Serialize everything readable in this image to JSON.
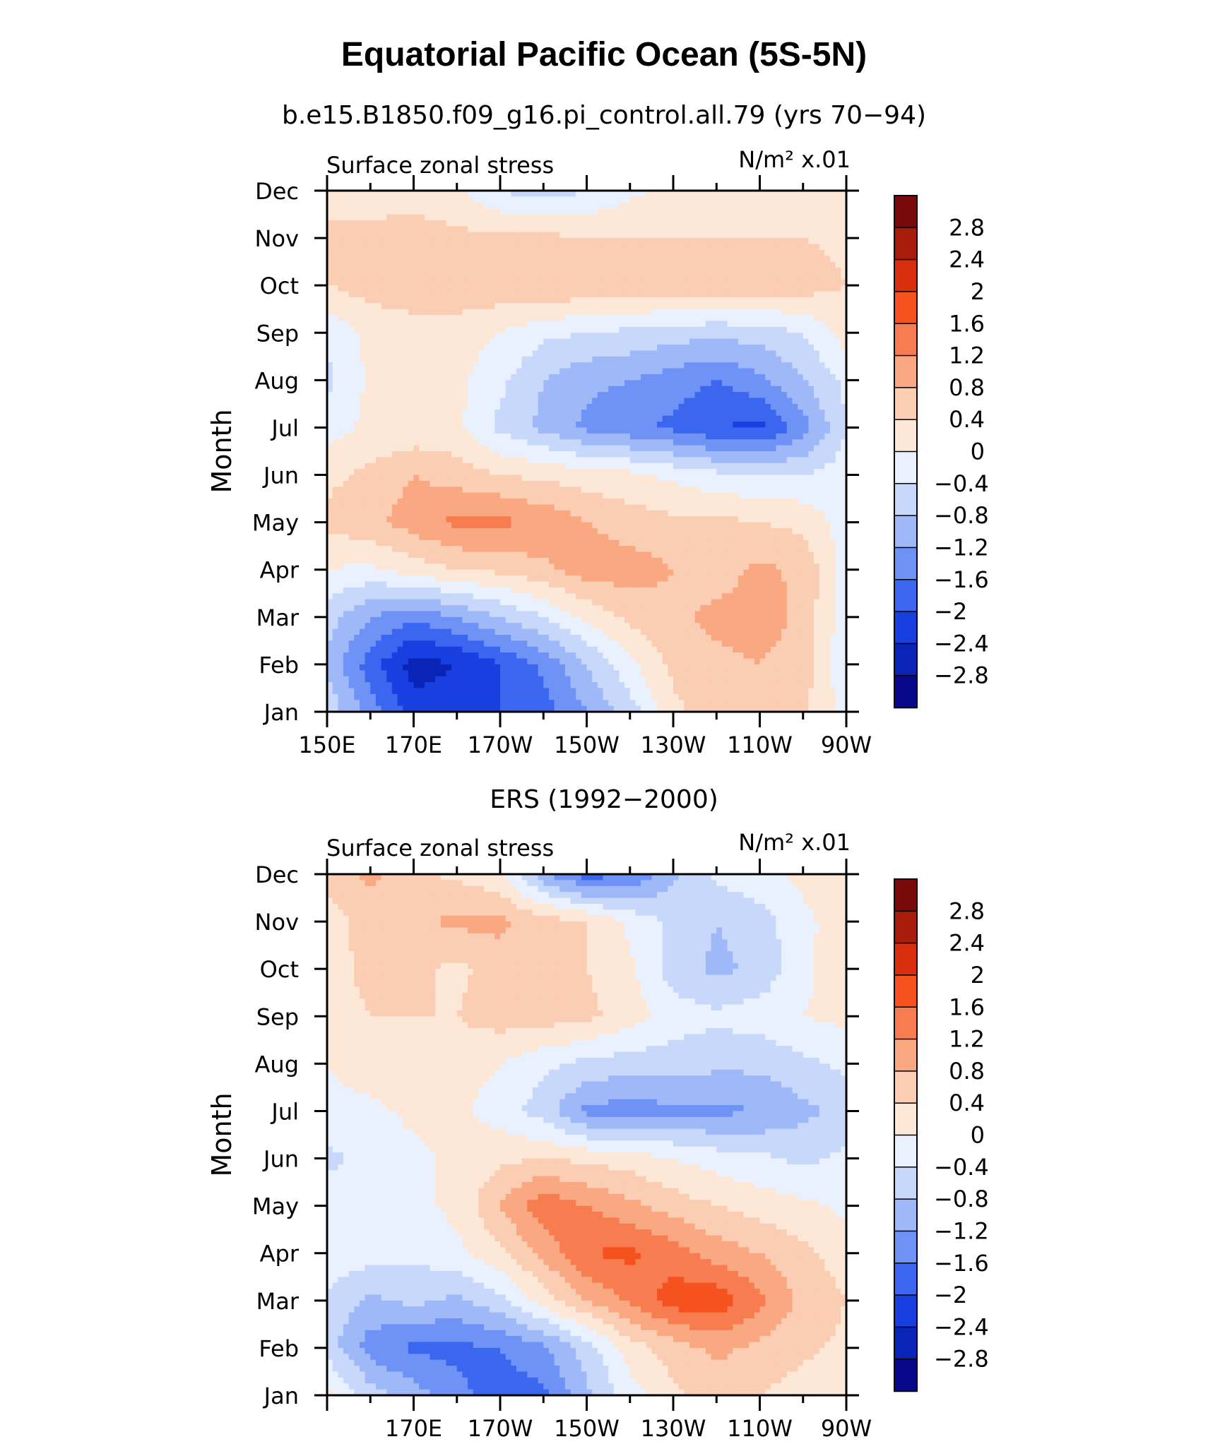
{
  "figure": {
    "title": "Equatorial Pacific Ocean (5S-5N)"
  },
  "panels": [
    {
      "subtitle": "b.e15.B1850.f09_g16.pi_control.all.79 (yrs 70−94)",
      "left_label": "Surface zonal stress",
      "units_label": "N/m² x.01"
    },
    {
      "subtitle": "ERS (1992−2000)",
      "left_label": "Surface zonal stress",
      "units_label": "N/m² x.01"
    }
  ],
  "chart_data": [
    {
      "type": "heatmap",
      "title": "b.e15.B1850.f09_g16.pi_control.all.79 (yrs 70−94)",
      "variable": "Surface zonal stress",
      "units": "N/m² x.01",
      "xlabel": "",
      "ylabel": "Month",
      "x_ticks": [
        "150E",
        "170E",
        "170W",
        "150W",
        "130W",
        "110W",
        "90W"
      ],
      "x_range_deg_east": [
        150,
        270
      ],
      "y_ticks": [
        "Jan",
        "Feb",
        "Mar",
        "Apr",
        "May",
        "Jun",
        "Jul",
        "Aug",
        "Sep",
        "Oct",
        "Nov",
        "Dec"
      ],
      "x_grid": [
        150,
        160,
        170,
        180,
        190,
        200,
        210,
        220,
        230,
        240,
        250,
        260,
        270
      ],
      "values": [
        [
          -0.5,
          -1.4,
          -2.2,
          -2.2,
          -2.0,
          -1.8,
          -1.2,
          -0.6,
          0.3,
          0.6,
          0.7,
          0.5,
          -0.2
        ],
        [
          -0.9,
          -1.8,
          -2.6,
          -2.4,
          -2.0,
          -1.5,
          -0.8,
          -0.1,
          0.5,
          0.7,
          0.8,
          0.6,
          -0.3
        ],
        [
          -0.6,
          -1.2,
          -1.5,
          -1.2,
          -0.8,
          -0.4,
          0.1,
          0.5,
          0.7,
          0.9,
          1.0,
          0.7,
          -0.3
        ],
        [
          0.0,
          -0.1,
          0.2,
          0.4,
          0.5,
          0.7,
          1.0,
          1.0,
          0.8,
          0.6,
          0.9,
          0.7,
          -0.2
        ],
        [
          0.5,
          0.7,
          1.0,
          1.3,
          1.3,
          1.1,
          0.8,
          0.6,
          0.5,
          0.5,
          0.4,
          0.3,
          -0.2
        ],
        [
          0.3,
          0.5,
          0.8,
          0.6,
          0.4,
          0.3,
          0.2,
          0.1,
          -0.1,
          -0.3,
          -0.4,
          -0.4,
          -0.2
        ],
        [
          -0.2,
          0.1,
          0.1,
          0.1,
          -0.5,
          -0.9,
          -1.3,
          -1.5,
          -1.7,
          -2.0,
          -2.1,
          -1.4,
          -0.4
        ],
        [
          -0.5,
          0.1,
          0.1,
          0.1,
          -0.3,
          -0.8,
          -1.1,
          -1.2,
          -1.4,
          -1.6,
          -1.3,
          -0.8,
          -0.3
        ],
        [
          -0.3,
          0.1,
          0.2,
          0.2,
          0.0,
          -0.3,
          -0.4,
          -0.5,
          -0.6,
          -0.7,
          -0.6,
          -0.4,
          0.2
        ],
        [
          0.4,
          0.6,
          0.7,
          0.7,
          0.7,
          0.8,
          0.7,
          0.7,
          0.7,
          0.8,
          0.7,
          0.6,
          0.4
        ],
        [
          0.6,
          0.6,
          0.6,
          0.5,
          0.5,
          0.5,
          0.4,
          0.4,
          0.4,
          0.4,
          0.4,
          0.4,
          0.3
        ],
        [
          0.1,
          0.1,
          0.2,
          0.1,
          -0.4,
          -0.6,
          -0.4,
          -0.1,
          0.1,
          0.1,
          0.2,
          0.2,
          0.2
        ]
      ],
      "colorbar_levels": [
        -2.8,
        -2.4,
        -2,
        -1.6,
        -1.2,
        -0.8,
        -0.4,
        0,
        0.4,
        0.8,
        1.2,
        1.6,
        2,
        2.4,
        2.8
      ],
      "colorbar_labels": [
        "2.8",
        "2.4",
        "2",
        "1.6",
        "1.2",
        "0.8",
        "0.4",
        "0",
        "−0.4",
        "−0.8",
        "−1.2",
        "−1.6",
        "−2",
        "−2.4",
        "−2.8"
      ]
    },
    {
      "type": "heatmap",
      "title": "ERS (1992−2000)",
      "variable": "Surface zonal stress",
      "units": "N/m² x.01",
      "xlabel": "",
      "ylabel": "Month",
      "x_ticks": [
        "170E",
        "170W",
        "150W",
        "130W",
        "110W",
        "90W"
      ],
      "x_range_deg_east": [
        150,
        270
      ],
      "y_ticks": [
        "Jan",
        "Feb",
        "Mar",
        "Apr",
        "May",
        "Jun",
        "Jul",
        "Aug",
        "Sep",
        "Oct",
        "Nov",
        "Dec"
      ],
      "x_grid": [
        150,
        160,
        170,
        180,
        190,
        200,
        210,
        220,
        230,
        240,
        250,
        260,
        270
      ],
      "values": [
        [
          0.2,
          -0.6,
          -1.0,
          -1.5,
          -1.8,
          -1.7,
          -0.9,
          -0.2,
          0.3,
          0.6,
          0.4,
          0.2,
          0.1
        ],
        [
          -0.6,
          -1.4,
          -1.7,
          -1.7,
          -1.6,
          -1.3,
          -0.6,
          0.2,
          0.6,
          0.9,
          0.7,
          0.5,
          0.3
        ],
        [
          -0.5,
          -0.9,
          -0.7,
          -0.9,
          -0.5,
          0.2,
          0.8,
          1.3,
          1.8,
          1.9,
          1.3,
          0.7,
          0.4
        ],
        [
          -0.1,
          -0.2,
          -0.3,
          -0.1,
          0.3,
          0.9,
          1.6,
          1.7,
          1.4,
          1.0,
          0.8,
          0.5,
          0.2
        ],
        [
          -0.2,
          -0.2,
          -0.1,
          0.1,
          0.8,
          1.5,
          1.2,
          0.9,
          0.6,
          0.4,
          0.2,
          0.1,
          -0.1
        ],
        [
          -0.5,
          -0.3,
          -0.1,
          0.1,
          0.3,
          0.4,
          0.3,
          0.2,
          0.0,
          -0.2,
          -0.3,
          -0.5,
          -0.3
        ],
        [
          -0.1,
          -0.1,
          0.1,
          0.1,
          -0.2,
          -0.6,
          -1.3,
          -1.4,
          -1.3,
          -1.3,
          -1.2,
          -0.9,
          -0.7
        ],
        [
          0.0,
          0.2,
          0.3,
          0.2,
          0.0,
          -0.3,
          -0.5,
          -0.6,
          -0.6,
          -0.7,
          -0.7,
          -0.5,
          -0.3
        ],
        [
          0.1,
          0.4,
          0.4,
          0.4,
          0.6,
          0.6,
          0.5,
          0.2,
          -0.2,
          -0.3,
          -0.2,
          0.0,
          0.1
        ],
        [
          0.1,
          0.6,
          0.5,
          0.3,
          0.6,
          0.6,
          0.4,
          0.1,
          -0.6,
          -0.9,
          -0.7,
          -0.1,
          0.3
        ],
        [
          0.2,
          0.6,
          0.7,
          0.9,
          0.9,
          0.6,
          0.4,
          -0.1,
          -0.5,
          -0.8,
          -0.6,
          -0.1,
          0.2
        ],
        [
          0.6,
          0.9,
          0.5,
          0.3,
          0.1,
          -1.1,
          -1.8,
          -1.6,
          -0.9,
          -0.3,
          -0.1,
          0.1,
          0.2
        ]
      ],
      "colorbar_levels": [
        -2.8,
        -2.4,
        -2,
        -1.6,
        -1.2,
        -0.8,
        -0.4,
        0,
        0.4,
        0.8,
        1.2,
        1.6,
        2,
        2.4,
        2.8
      ],
      "colorbar_labels": [
        "2.8",
        "2.4",
        "2",
        "1.6",
        "1.2",
        "0.8",
        "0.4",
        "0",
        "−0.4",
        "−0.8",
        "−1.2",
        "−1.6",
        "−2",
        "−2.4",
        "−2.8"
      ]
    }
  ],
  "colors": {
    "palette": [
      "#08088a",
      "#0a24b8",
      "#1840e0",
      "#3b66f0",
      "#6e92f5",
      "#9fb8f8",
      "#c8d8fb",
      "#eaf1fe",
      "#fde8d8",
      "#fbcdb2",
      "#f9a882",
      "#f77c50",
      "#f5521f",
      "#d8300f",
      "#a81c0a",
      "#7a0a0a"
    ]
  }
}
